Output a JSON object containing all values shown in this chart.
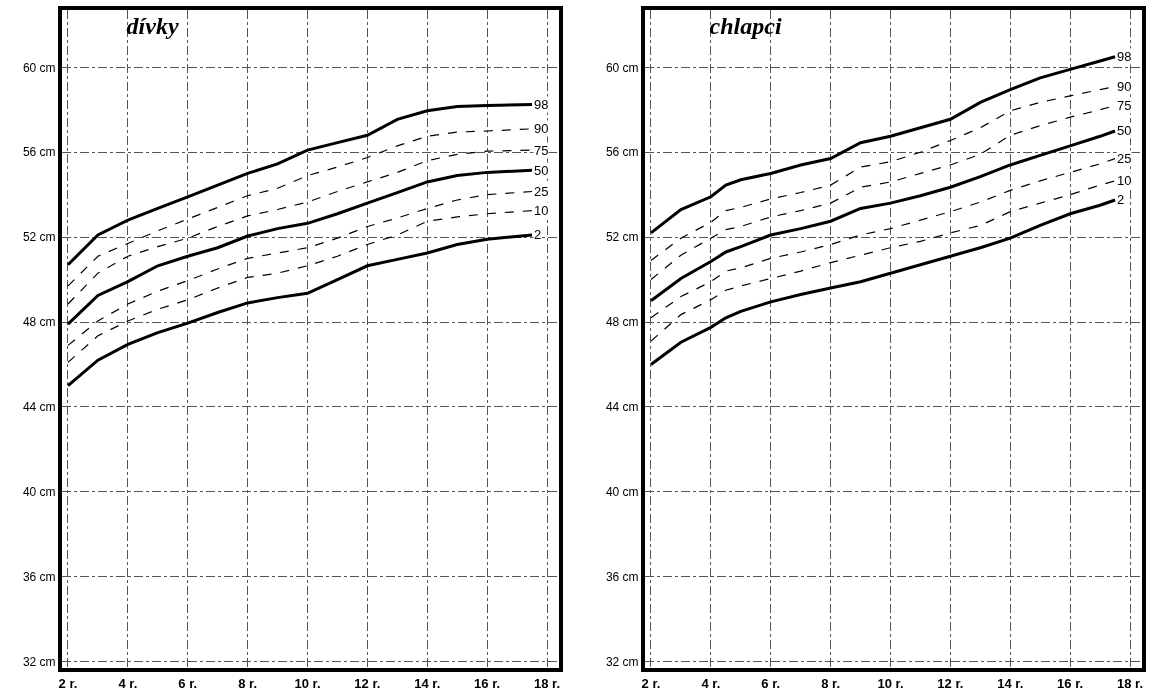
{
  "chart_data": [
    {
      "type": "line",
      "title": "dívky",
      "xlim": [
        1.8,
        18.4
      ],
      "ylim": [
        31.7,
        62.7
      ],
      "xticks": [
        {
          "value": 2,
          "label": "2 r."
        },
        {
          "value": 4,
          "label": "4 r."
        },
        {
          "value": 6,
          "label": "6 r."
        },
        {
          "value": 8,
          "label": "8 r."
        },
        {
          "value": 10,
          "label": "10 r."
        },
        {
          "value": 12,
          "label": "12 r."
        },
        {
          "value": 14,
          "label": "14 r."
        },
        {
          "value": 16,
          "label": "16 r."
        },
        {
          "value": 18,
          "label": "18 r."
        }
      ],
      "yticks": [
        {
          "value": 32,
          "label": "32 cm"
        },
        {
          "value": 36,
          "label": "36 cm"
        },
        {
          "value": 40,
          "label": "40 cm"
        },
        {
          "value": 44,
          "label": "44 cm"
        },
        {
          "value": 48,
          "label": "48 cm"
        },
        {
          "value": 52,
          "label": "52 cm"
        },
        {
          "value": 56,
          "label": "56 cm"
        },
        {
          "value": 60,
          "label": "60 cm"
        }
      ],
      "grid": true,
      "legend": false,
      "marker": "none",
      "x": [
        2,
        3,
        4,
        5,
        6,
        7,
        8,
        9,
        10,
        11,
        12,
        13,
        14,
        15,
        16,
        17.5
      ],
      "series": [
        {
          "name": "98",
          "color": "#000000",
          "line_style": "solid",
          "values": [
            50.7,
            52.1,
            52.8,
            53.35,
            53.9,
            54.45,
            55.0,
            55.45,
            56.1,
            56.45,
            56.8,
            57.55,
            57.95,
            58.15,
            58.2,
            58.25
          ]
        },
        {
          "name": "90",
          "color": "#000000",
          "line_style": "dashed",
          "values": [
            49.7,
            51.1,
            51.7,
            52.3,
            52.85,
            53.4,
            53.95,
            54.3,
            54.9,
            55.3,
            55.75,
            56.3,
            56.75,
            56.95,
            57.0,
            57.1
          ]
        },
        {
          "name": "75",
          "color": "#000000",
          "line_style": "dashed",
          "values": [
            48.85,
            50.3,
            51.1,
            51.55,
            51.95,
            52.5,
            53.0,
            53.3,
            53.65,
            54.15,
            54.6,
            55.05,
            55.6,
            55.9,
            56.05,
            56.1
          ]
        },
        {
          "name": "50",
          "color": "#000000",
          "line_style": "solid",
          "values": [
            47.9,
            49.25,
            49.9,
            50.65,
            51.1,
            51.5,
            52.05,
            52.4,
            52.65,
            53.1,
            53.6,
            54.1,
            54.6,
            54.9,
            55.05,
            55.15
          ]
        },
        {
          "name": "25",
          "color": "#000000",
          "line_style": "dashed",
          "values": [
            46.9,
            48.05,
            48.85,
            49.45,
            49.95,
            50.5,
            51.0,
            51.25,
            51.5,
            51.95,
            52.5,
            52.9,
            53.35,
            53.75,
            54.0,
            54.15
          ]
        },
        {
          "name": "10",
          "color": "#000000",
          "line_style": "dashed",
          "values": [
            46.1,
            47.35,
            48.05,
            48.6,
            49.05,
            49.6,
            50.1,
            50.3,
            50.65,
            51.1,
            51.65,
            52.1,
            52.75,
            52.95,
            53.1,
            53.25
          ]
        },
        {
          "name": "2",
          "color": "#000000",
          "line_style": "solid",
          "values": [
            45.0,
            46.2,
            46.95,
            47.5,
            47.95,
            48.45,
            48.9,
            49.15,
            49.35,
            50.0,
            50.65,
            50.95,
            51.25,
            51.65,
            51.9,
            52.1
          ]
        }
      ]
    },
    {
      "type": "line",
      "title": "chlapci",
      "xlim": [
        1.8,
        18.4
      ],
      "ylim": [
        31.7,
        62.7
      ],
      "xticks": [
        {
          "value": 2,
          "label": "2 r."
        },
        {
          "value": 4,
          "label": "4 r."
        },
        {
          "value": 6,
          "label": "6 r."
        },
        {
          "value": 8,
          "label": "8 r."
        },
        {
          "value": 10,
          "label": "10 r."
        },
        {
          "value": 12,
          "label": "12 r."
        },
        {
          "value": 14,
          "label": "14 r."
        },
        {
          "value": 16,
          "label": "16 r."
        },
        {
          "value": 18,
          "label": "18 r."
        }
      ],
      "yticks": [
        {
          "value": 32,
          "label": "32 cm"
        },
        {
          "value": 36,
          "label": "36 cm"
        },
        {
          "value": 40,
          "label": "40 cm"
        },
        {
          "value": 44,
          "label": "44 cm"
        },
        {
          "value": 48,
          "label": "48 cm"
        },
        {
          "value": 52,
          "label": "52 cm"
        },
        {
          "value": 56,
          "label": "56 cm"
        },
        {
          "value": 60,
          "label": "60 cm"
        }
      ],
      "grid": true,
      "legend": false,
      "marker": "none",
      "x": [
        2,
        3,
        4,
        4.5,
        5,
        6,
        7,
        8,
        9,
        10,
        11,
        12,
        13,
        14,
        15,
        16,
        17,
        17.5
      ],
      "series": [
        {
          "name": "98",
          "color": "#000000",
          "line_style": "solid",
          "values": [
            52.2,
            53.3,
            53.9,
            54.45,
            54.7,
            55.0,
            55.4,
            55.7,
            56.45,
            56.75,
            57.15,
            57.55,
            58.35,
            58.95,
            59.5,
            59.9,
            60.3,
            60.5
          ]
        },
        {
          "name": "90",
          "color": "#000000",
          "line_style": "dashed",
          "values": [
            50.9,
            51.95,
            52.7,
            53.25,
            53.4,
            53.8,
            54.1,
            54.45,
            55.3,
            55.55,
            56.0,
            56.55,
            57.15,
            57.95,
            58.35,
            58.65,
            58.95,
            59.1
          ]
        },
        {
          "name": "75",
          "color": "#000000",
          "line_style": "dashed",
          "values": [
            50.0,
            51.15,
            51.95,
            52.35,
            52.5,
            52.95,
            53.25,
            53.6,
            54.35,
            54.6,
            55.0,
            55.4,
            55.9,
            56.8,
            57.25,
            57.65,
            58.0,
            58.2
          ]
        },
        {
          "name": "50",
          "color": "#000000",
          "line_style": "solid",
          "values": [
            49.0,
            50.05,
            50.85,
            51.3,
            51.55,
            52.1,
            52.4,
            52.75,
            53.35,
            53.6,
            53.95,
            54.35,
            54.85,
            55.4,
            55.85,
            56.3,
            56.75,
            57.0
          ]
        },
        {
          "name": "25",
          "color": "#000000",
          "line_style": "dashed",
          "values": [
            48.2,
            49.2,
            49.9,
            50.4,
            50.55,
            51.0,
            51.3,
            51.65,
            52.1,
            52.4,
            52.8,
            53.2,
            53.65,
            54.2,
            54.65,
            55.05,
            55.45,
            55.7
          ]
        },
        {
          "name": "10",
          "color": "#000000",
          "line_style": "dashed",
          "values": [
            47.1,
            48.35,
            49.05,
            49.5,
            49.7,
            50.05,
            50.4,
            50.8,
            51.15,
            51.5,
            51.8,
            52.2,
            52.55,
            53.2,
            53.6,
            54.0,
            54.45,
            54.65
          ]
        },
        {
          "name": "2",
          "color": "#000000",
          "line_style": "solid",
          "values": [
            46.0,
            47.05,
            47.75,
            48.2,
            48.5,
            48.95,
            49.3,
            49.6,
            49.9,
            50.3,
            50.7,
            51.1,
            51.5,
            51.95,
            52.55,
            53.1,
            53.5,
            53.75
          ]
        }
      ]
    }
  ]
}
